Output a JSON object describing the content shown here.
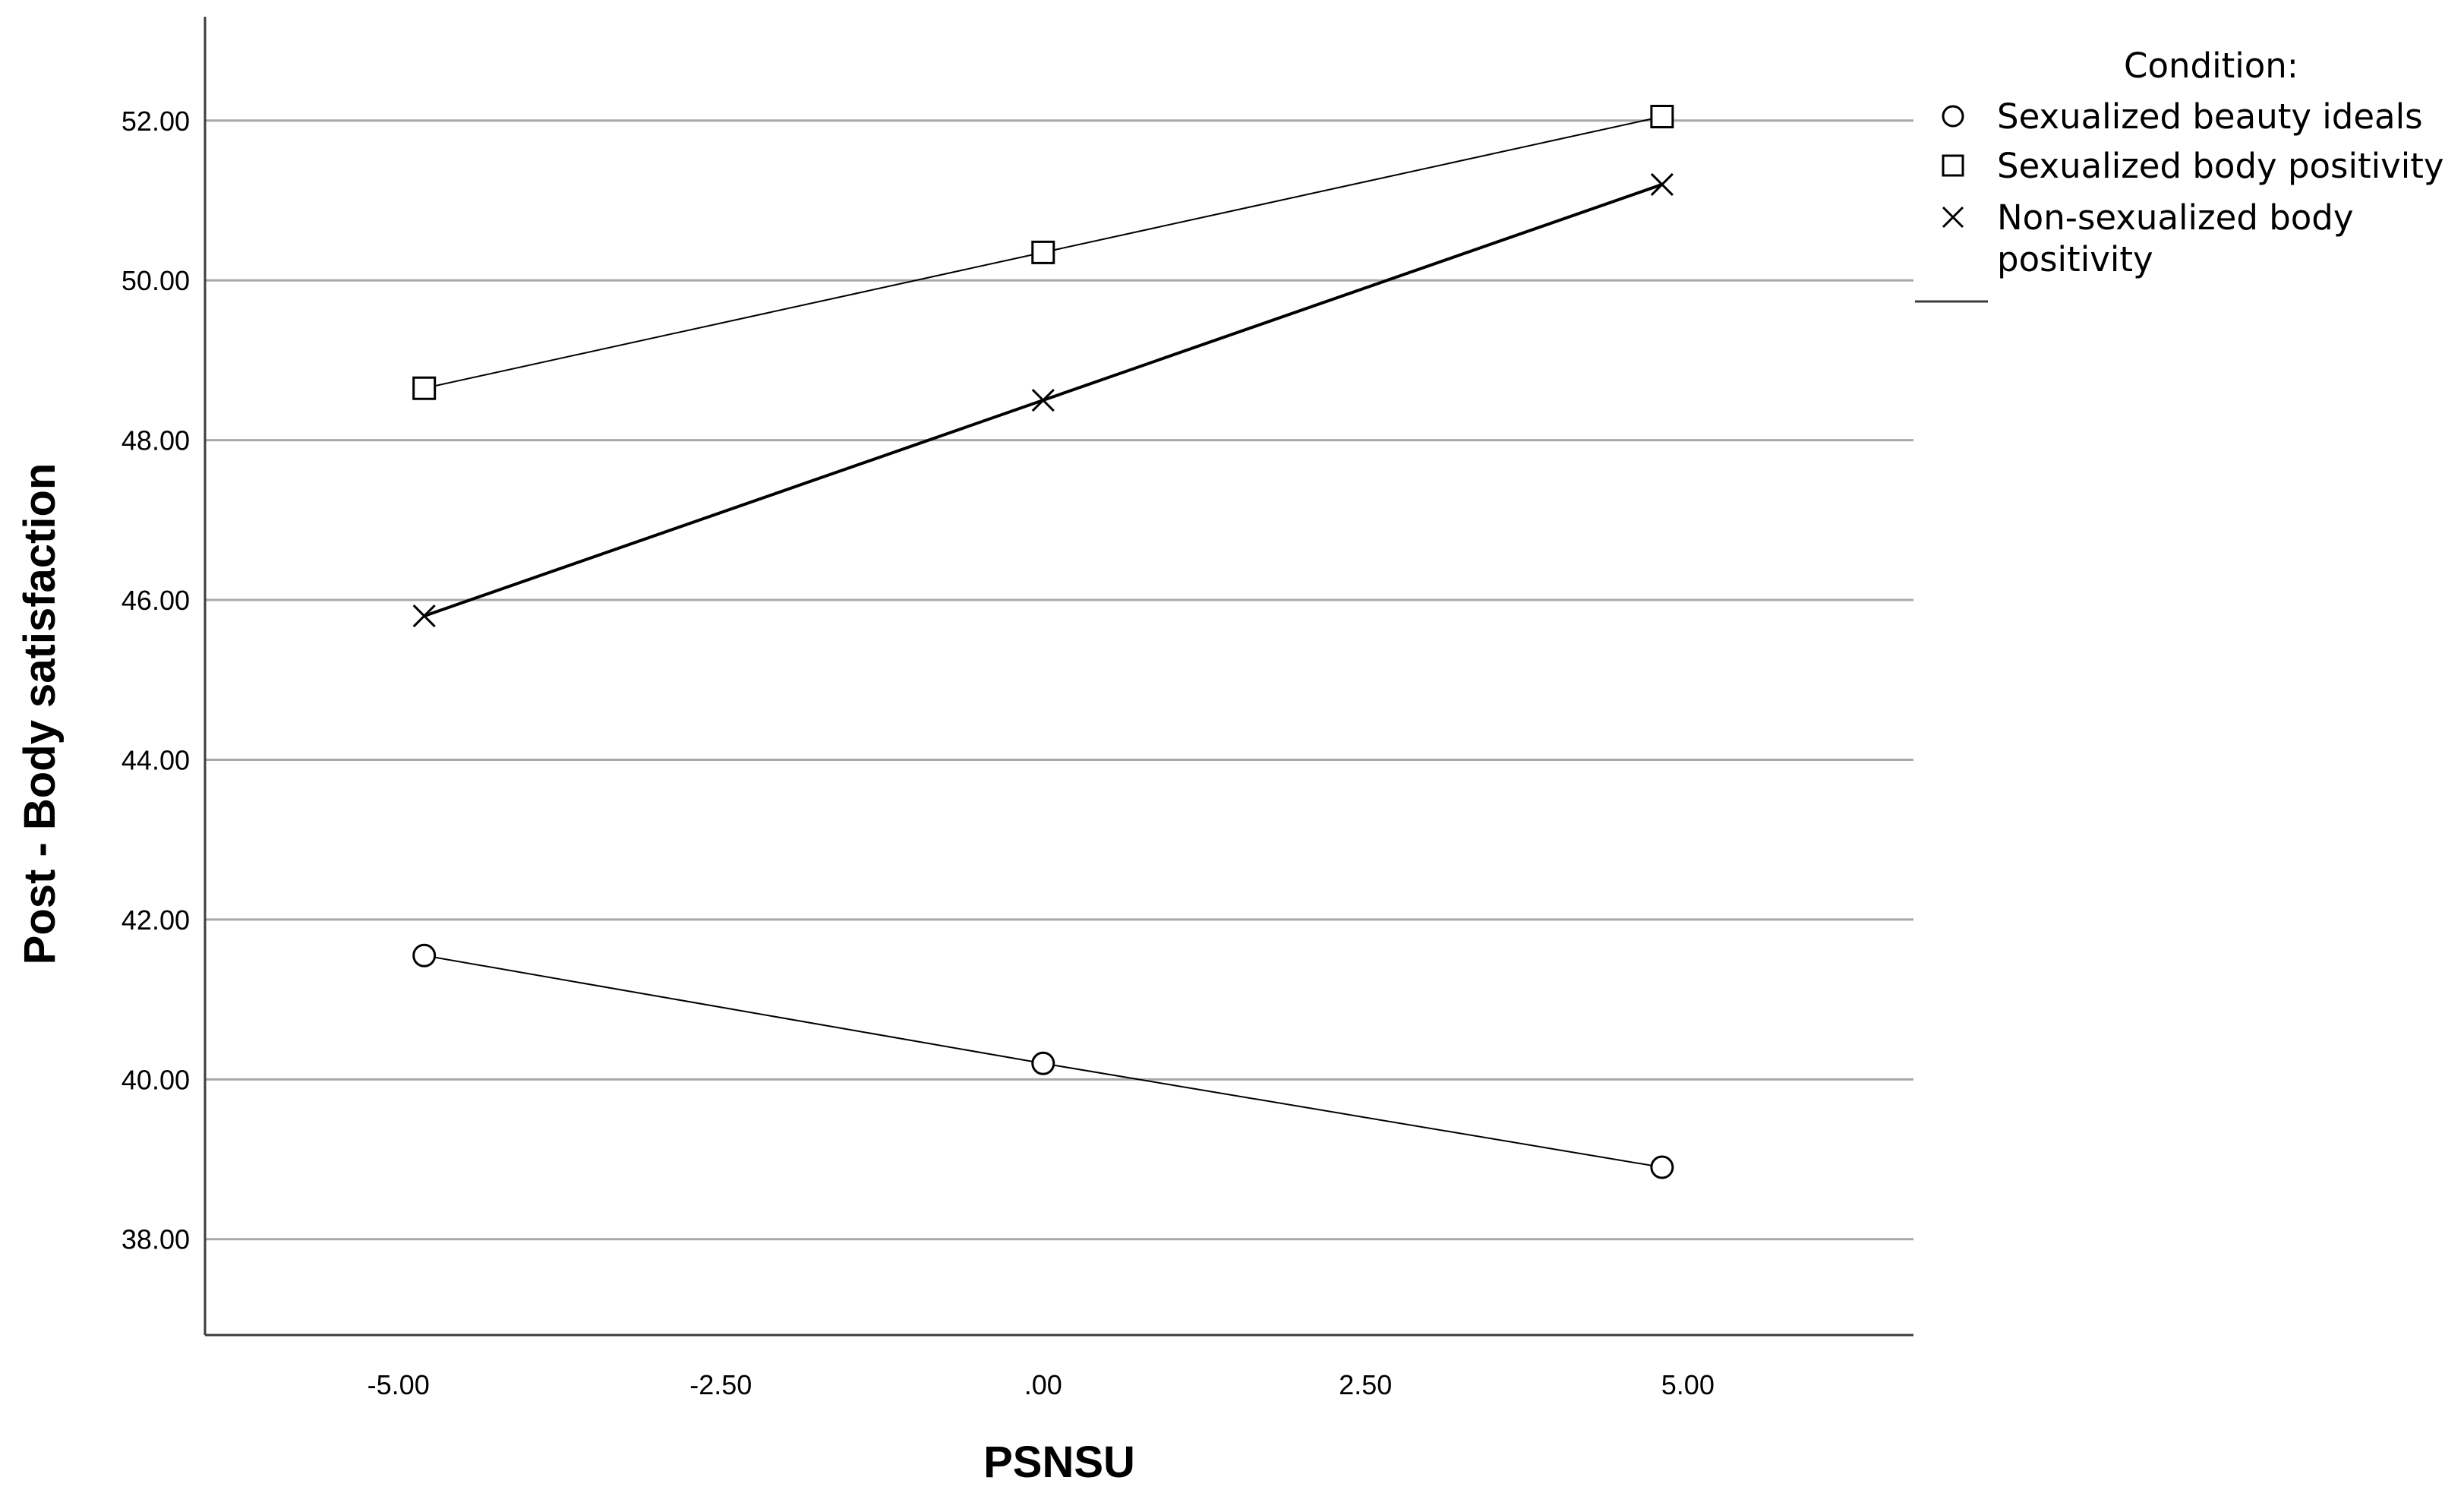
{
  "chart_data": {
    "type": "line",
    "xlabel": "PSNSU",
    "ylabel": "Post - Body satisfaction",
    "xlim": [
      -6.5,
      6.75
    ],
    "ylim": [
      36.8,
      53.3
    ],
    "x_ticks": [
      -5,
      -2.5,
      0,
      2.5,
      5
    ],
    "x_tick_labels": [
      "-5.00",
      "-2.50",
      ".00",
      "2.50",
      "5.00"
    ],
    "y_ticks": [
      38,
      40,
      42,
      44,
      46,
      48,
      50,
      52
    ],
    "y_tick_labels": [
      "38.00",
      "40.00",
      "42.00",
      "44.00",
      "46.00",
      "48.00",
      "50.00",
      "52.00"
    ],
    "grid": "horizontal",
    "legend": {
      "title": "Condition:",
      "placement": "top-right"
    },
    "x": [
      -4.8,
      0,
      4.8
    ],
    "series": [
      {
        "name": "Sexualized beauty ideals",
        "marker": "circle",
        "line_weight": "thin",
        "values": [
          41.55,
          40.2,
          38.9
        ]
      },
      {
        "name": "Sexualized body positivity",
        "marker": "square",
        "line_weight": "thin",
        "values": [
          48.65,
          50.35,
          52.05
        ]
      },
      {
        "name": "Non-sexualized body positivity",
        "name_lines": [
          "Non-sexualized body",
          "positivity"
        ],
        "marker": "x",
        "line_weight": "thick",
        "values": [
          45.8,
          48.5,
          51.2
        ]
      }
    ],
    "colors": {
      "line": "#000000",
      "grid": "#a8a8a8",
      "axis": "#3c3c3c"
    }
  }
}
